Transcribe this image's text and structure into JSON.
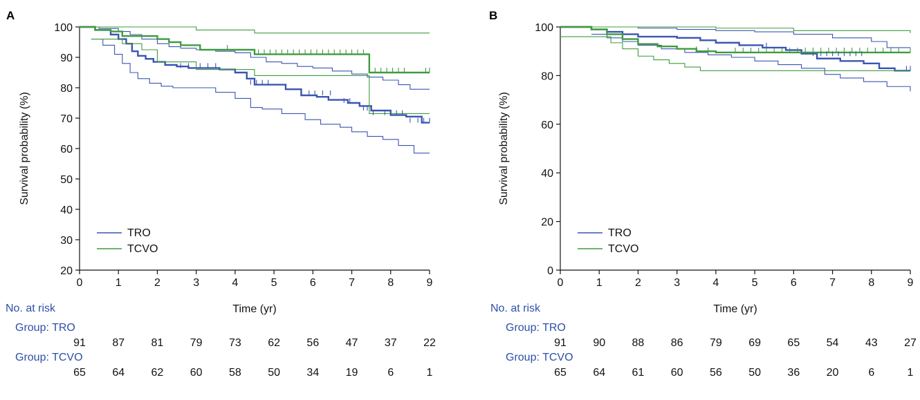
{
  "colors": {
    "tro": "#3a54b2",
    "tcvo": "#3f9a3f",
    "risk_text": "#2e4fa8"
  },
  "chart_data": [
    {
      "type": "line",
      "panel_label": "A",
      "xlabel": "Time (yr)",
      "ylabel": "Survival probability (%)",
      "xlim": [
        0,
        9
      ],
      "ylim": [
        20,
        100
      ],
      "x_ticks": [
        0,
        1,
        2,
        3,
        4,
        5,
        6,
        7,
        8,
        9
      ],
      "y_ticks": [
        20,
        30,
        40,
        50,
        60,
        70,
        80,
        90,
        100
      ],
      "grid": false,
      "legend": {
        "placement": "bottom-left",
        "entries": [
          "TRO",
          "TCVO"
        ]
      },
      "series": [
        {
          "name": "TRO",
          "role": "estimate",
          "x": [
            0,
            0.4,
            0.8,
            1.0,
            1.2,
            1.35,
            1.5,
            1.7,
            1.9,
            2.2,
            2.5,
            2.8,
            3.3,
            3.6,
            4.0,
            4.3,
            4.5,
            4.9,
            5.3,
            5.7,
            6.1,
            6.4,
            6.9,
            7.2,
            7.5,
            8.0,
            8.4,
            8.8,
            9.0
          ],
          "y": [
            100,
            99,
            97.5,
            96,
            94.5,
            92,
            90.5,
            89.5,
            88.5,
            87.5,
            87,
            86.5,
            86.5,
            86,
            85,
            83,
            81,
            81,
            79.5,
            77.5,
            77,
            76,
            75,
            74,
            72.5,
            71,
            70.5,
            68.5,
            68.5
          ]
        },
        {
          "name": "TRO",
          "role": "upper-ci",
          "x": [
            0,
            0.5,
            1.0,
            1.3,
            1.6,
            2.0,
            2.3,
            2.6,
            3.0,
            3.5,
            4.0,
            4.4,
            4.8,
            5.2,
            5.6,
            6.0,
            6.5,
            7.0,
            7.4,
            7.8,
            8.2,
            8.5,
            9.0
          ],
          "y": [
            100,
            99.5,
            98.5,
            97.5,
            96,
            94.5,
            93.5,
            93,
            92.5,
            92,
            91.5,
            90,
            88.5,
            88,
            87,
            86.5,
            85.5,
            84.5,
            83.5,
            82.5,
            81,
            79.5,
            79.5
          ]
        },
        {
          "name": "TRO",
          "role": "lower-ci",
          "x": [
            0.3,
            0.6,
            0.9,
            1.1,
            1.3,
            1.5,
            1.8,
            2.1,
            2.4,
            3.0,
            3.5,
            4.0,
            4.4,
            4.7,
            5.2,
            5.8,
            6.2,
            6.7,
            7.0,
            7.4,
            7.8,
            8.2,
            8.6,
            9.0
          ],
          "y": [
            96,
            94,
            91,
            88,
            85,
            83,
            81.5,
            80.5,
            80,
            80,
            78.5,
            76.5,
            73.5,
            73,
            71.5,
            69.5,
            68,
            67,
            65.5,
            64,
            63,
            61,
            58.5,
            58.5
          ]
        },
        {
          "name": "TCVO",
          "role": "estimate",
          "x": [
            0,
            0.4,
            0.8,
            1.1,
            1.5,
            2.0,
            2.3,
            2.6,
            3.1,
            3.4,
            4.5,
            5.5,
            7.4,
            7.45,
            9.0
          ],
          "y": [
            100,
            99,
            98.5,
            97,
            97,
            96,
            95,
            94,
            92.5,
            92.5,
            91,
            91,
            91,
            85,
            85
          ]
        },
        {
          "name": "TCVO",
          "role": "upper-ci",
          "x": [
            0,
            1.0,
            3.0,
            4.5,
            9.0
          ],
          "y": [
            100,
            100,
            99,
            98,
            98
          ]
        },
        {
          "name": "TCVO",
          "role": "lower-ci",
          "x": [
            0.3,
            0.7,
            1.1,
            1.6,
            2.0,
            3.0,
            3.2,
            4.5,
            7.4,
            7.45,
            9.0
          ],
          "y": [
            96,
            96,
            94.5,
            92.5,
            88.5,
            86,
            86,
            84,
            84,
            71.5,
            71.5
          ]
        }
      ],
      "censor_marks": [
        {
          "series": "TRO",
          "x": [
            4.4,
            4.55,
            4.7,
            4.85,
            5.9,
            6.05,
            6.25,
            6.45,
            6.8,
            6.95,
            7.3,
            7.4,
            7.55,
            7.85,
            8.0,
            8.15,
            8.3,
            8.5,
            8.7,
            8.85,
            9.0
          ],
          "y": [
            81,
            81,
            81,
            81,
            77.5,
            77.5,
            77.5,
            77.5,
            75,
            75,
            72.5,
            72.5,
            71,
            71,
            71,
            71,
            71,
            68.5,
            68.5,
            68.5,
            68.5
          ]
        },
        {
          "series": "TCVO",
          "x": [
            3.8,
            4.6,
            4.75,
            4.9,
            5.05,
            5.2,
            5.35,
            5.5,
            5.65,
            5.8,
            5.95,
            6.1,
            6.25,
            6.4,
            6.55,
            6.7,
            6.85,
            7.0,
            7.15,
            7.3,
            7.6,
            7.75,
            7.9,
            8.05,
            8.2,
            8.35,
            8.9,
            9.0
          ],
          "y": [
            92.5,
            91,
            91,
            91,
            91,
            91,
            91,
            91,
            91,
            91,
            91,
            91,
            91,
            91,
            91,
            91,
            91,
            91,
            91,
            91,
            85,
            85,
            85,
            85,
            85,
            85,
            85,
            85
          ]
        },
        {
          "series": "TRO-ci",
          "x": [
            2.6,
            2.8,
            3.1,
            3.3,
            3.5
          ],
          "y": [
            86.5,
            86.5,
            86.5,
            86.5,
            86.5
          ]
        }
      ],
      "risk_table": {
        "title": "No. at risk",
        "groups": [
          {
            "label": "Group: TRO",
            "values": [
              91,
              87,
              81,
              79,
              73,
              62,
              56,
              47,
              37,
              22
            ]
          },
          {
            "label": "Group: TCVO",
            "values": [
              65,
              64,
              62,
              60,
              58,
              50,
              34,
              19,
              6,
              1
            ]
          }
        ]
      }
    },
    {
      "type": "line",
      "panel_label": "B",
      "xlabel": "Time (yr)",
      "ylabel": "Survival probability (%)",
      "xlim": [
        0,
        9
      ],
      "ylim": [
        0,
        100
      ],
      "x_ticks": [
        0,
        1,
        2,
        3,
        4,
        5,
        6,
        7,
        8,
        9
      ],
      "y_ticks": [
        0,
        20,
        40,
        60,
        80,
        100
      ],
      "grid": false,
      "legend": {
        "placement": "bottom-left",
        "entries": [
          "TRO",
          "TCVO"
        ]
      },
      "series": [
        {
          "name": "TRO",
          "role": "estimate",
          "x": [
            0,
            0.8,
            1.2,
            1.6,
            2.0,
            3.0,
            3.6,
            4.0,
            4.6,
            5.2,
            5.8,
            6.2,
            6.6,
            7.2,
            7.8,
            8.2,
            8.6,
            9.0
          ],
          "y": [
            100,
            99,
            98,
            97,
            96,
            95.5,
            94.5,
            93.5,
            92.5,
            91.5,
            90.5,
            89,
            87,
            86,
            85,
            83,
            82,
            82
          ]
        },
        {
          "name": "TRO",
          "role": "upper-ci",
          "x": [
            0,
            1.0,
            2.0,
            3.0,
            4.0,
            5.0,
            6.0,
            7.0,
            8.0,
            8.4,
            9.0
          ],
          "y": [
            100,
            100,
            99.5,
            99,
            98.5,
            98,
            97,
            95.5,
            94,
            91.5,
            91.5
          ]
        },
        {
          "name": "TRO",
          "role": "lower-ci",
          "x": [
            0.8,
            1.2,
            1.6,
            2.0,
            2.6,
            3.2,
            3.8,
            4.4,
            5.0,
            5.6,
            6.2,
            6.8,
            7.2,
            7.8,
            8.4,
            9.0
          ],
          "y": [
            97,
            95.5,
            94,
            92.5,
            91,
            89.5,
            88.5,
            87.5,
            86,
            84.5,
            83,
            80.5,
            79,
            77.5,
            75.5,
            73.5
          ]
        },
        {
          "name": "TCVO",
          "role": "estimate",
          "x": [
            0,
            0.8,
            1.2,
            1.6,
            2.0,
            2.5,
            3.0,
            3.5,
            4.0,
            4.5,
            9.0
          ],
          "y": [
            100,
            99,
            97,
            95,
            93,
            92,
            91,
            90,
            89.5,
            89.5,
            89.5
          ]
        },
        {
          "name": "TCVO",
          "role": "upper-ci",
          "x": [
            0,
            2.0,
            4.0,
            6.0,
            9.0
          ],
          "y": [
            100,
            100,
            99.5,
            98.5,
            97.5
          ]
        },
        {
          "name": "TCVO",
          "role": "lower-ci",
          "x": [
            0,
            1.0,
            1.3,
            1.6,
            2.0,
            2.4,
            2.8,
            3.2,
            3.6,
            9.0
          ],
          "y": [
            96,
            96,
            93.5,
            91,
            88,
            86.5,
            85,
            83.5,
            82,
            82
          ]
        }
      ],
      "censor_marks": [
        {
          "series": "TRO",
          "x": [
            5.3,
            6.5,
            6.7,
            6.85,
            7.0,
            7.15,
            7.3,
            7.45,
            7.6,
            7.75,
            8.9,
            9.0
          ],
          "y": [
            91.5,
            88,
            88,
            88,
            88,
            88,
            88,
            88,
            88,
            88,
            82,
            82
          ]
        },
        {
          "series": "TCVO",
          "x": [
            3.5,
            3.8,
            4.5,
            4.7,
            4.9,
            5.1,
            5.3,
            5.5,
            5.7,
            5.9,
            6.1,
            6.3,
            6.5,
            6.7,
            6.9,
            7.1,
            7.3,
            7.5,
            7.7,
            7.9,
            8.1,
            8.3,
            8.5,
            8.7,
            9.0
          ],
          "y": [
            90,
            89.5,
            89.5,
            89.5,
            89.5,
            89.5,
            89.5,
            89.5,
            89.5,
            89.5,
            89.5,
            89.5,
            89.5,
            89.5,
            89.5,
            89.5,
            89.5,
            89.5,
            89.5,
            89.5,
            89.5,
            89.5,
            89.5,
            89.5,
            89.5
          ]
        }
      ],
      "risk_table": {
        "title": "No. at risk",
        "groups": [
          {
            "label": "Group: TRO",
            "values": [
              91,
              90,
              88,
              86,
              79,
              69,
              65,
              54,
              43,
              27
            ]
          },
          {
            "label": "Group: TCVO",
            "values": [
              65,
              64,
              61,
              60,
              56,
              50,
              36,
              20,
              6,
              1
            ]
          }
        ]
      }
    }
  ]
}
